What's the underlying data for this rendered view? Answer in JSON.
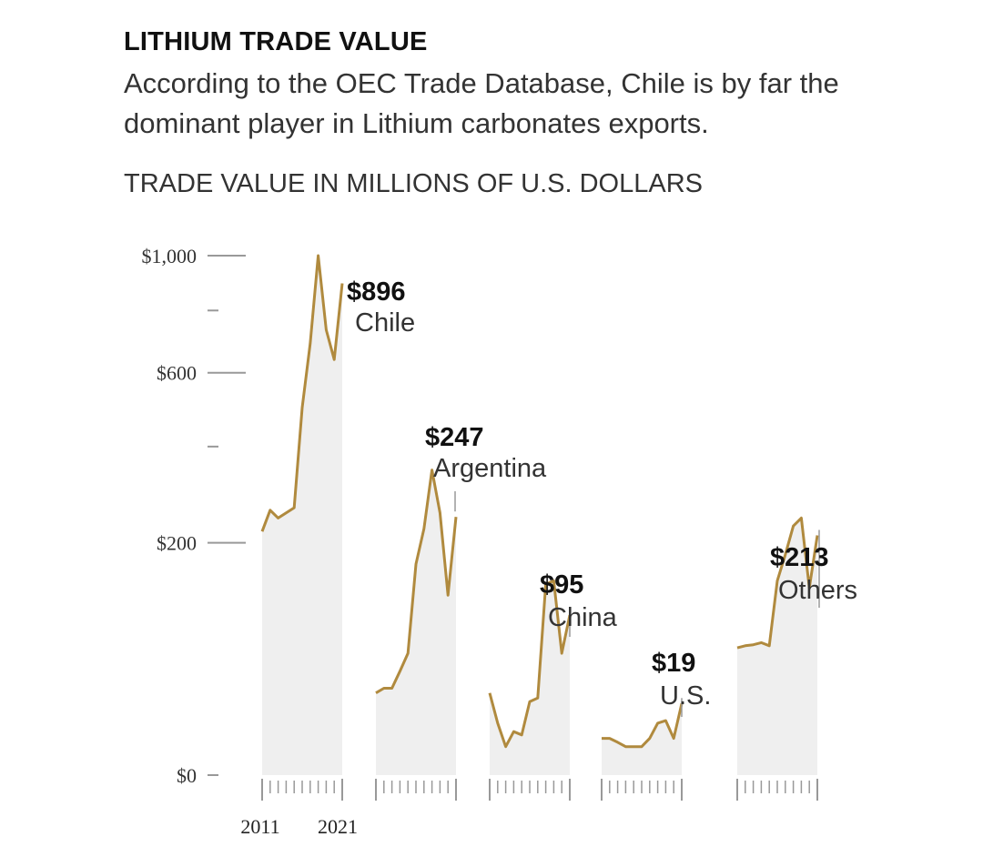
{
  "header": {
    "title": "LITHIUM TRADE VALUE",
    "subtitle": "According to the OEC Trade Database, Chile is by far the dominant player in Lithium carbonates exports.",
    "unit_label": "TRADE VALUE IN MILLIONS OF U.S. DOLLARS"
  },
  "chart_data": {
    "type": "area",
    "title": "LITHIUM TRADE VALUE",
    "ylabel": "TRADE VALUE IN MILLIONS OF U.S. DOLLARS",
    "ylim": [
      0,
      1000
    ],
    "y_scale": "sqrt",
    "y_ticks": [
      {
        "value": 1000,
        "label": "$1,000"
      },
      {
        "value": 800,
        "label": ""
      },
      {
        "value": 600,
        "label": "$600"
      },
      {
        "value": 400,
        "label": ""
      },
      {
        "value": 200,
        "label": "$200"
      },
      {
        "value": 0,
        "label": "$0"
      }
    ],
    "x": [
      2011,
      2012,
      2013,
      2014,
      2015,
      2016,
      2017,
      2018,
      2019,
      2020,
      2021
    ],
    "x_tick_labels": [
      "2011",
      "2021"
    ],
    "colors": {
      "line": "#b08a3e",
      "fill": "#efefef",
      "axis": "#999999",
      "leader": "#999999"
    },
    "series": [
      {
        "name": "Chile",
        "value_label": "$896",
        "values": [
          220,
          260,
          245,
          255,
          265,
          500,
          690,
          1000,
          735,
          640,
          896
        ]
      },
      {
        "name": "Argentina",
        "value_label": "$247",
        "values": [
          25,
          28,
          28,
          40,
          55,
          165,
          225,
          345,
          255,
          120,
          247
        ]
      },
      {
        "name": "China",
        "value_label": "$95",
        "values": [
          25,
          10,
          3,
          7,
          6,
          20,
          22,
          135,
          140,
          55,
          95
        ]
      },
      {
        "name": "U.S.",
        "value_label": "$19",
        "values": [
          5,
          5,
          4,
          3,
          3,
          3,
          5,
          10,
          11,
          5,
          19
        ]
      },
      {
        "name": "Others",
        "value_label": "$213",
        "values": [
          60,
          62,
          63,
          65,
          62,
          140,
          180,
          230,
          245,
          130,
          213
        ]
      }
    ]
  }
}
